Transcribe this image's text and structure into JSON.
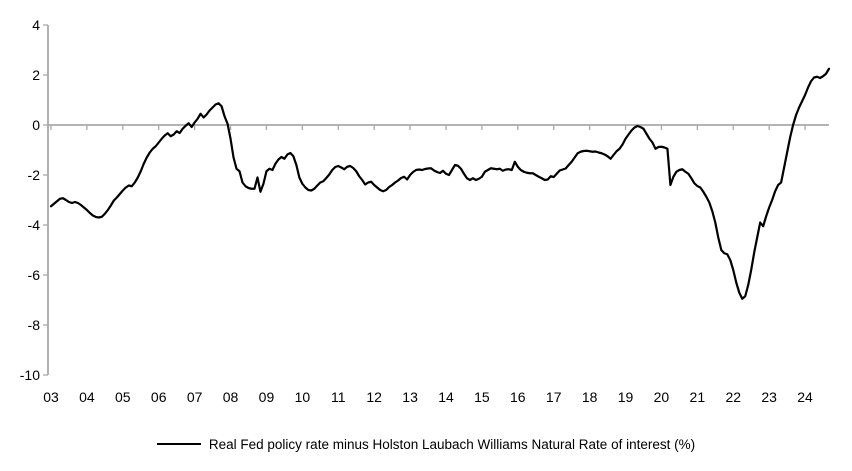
{
  "chart_data": {
    "type": "line",
    "title": "",
    "xlabel": "",
    "ylabel": "",
    "x_tick_labels": [
      "03",
      "04",
      "05",
      "06",
      "07",
      "08",
      "09",
      "10",
      "11",
      "12",
      "13",
      "14",
      "15",
      "16",
      "17",
      "18",
      "19",
      "20",
      "21",
      "22",
      "23",
      "24"
    ],
    "y_ticks": [
      4,
      2,
      0,
      -2,
      -4,
      -6,
      -8,
      -10
    ],
    "ylim": [
      -10,
      4
    ],
    "zero_line": true,
    "grid": false,
    "legend_position": "bottom",
    "line_color": "#000000",
    "axis_color": "#a9a9a9",
    "text_color": "#000000",
    "series": [
      {
        "name": "Real Fed policy rate minus Holston Laubach Williams Natural Rate of interest (%)",
        "start": "2003-01",
        "end": "2024-09",
        "frequency": "monthly",
        "values": [
          -3.25,
          -3.15,
          -3.05,
          -2.95,
          -2.93,
          -3.0,
          -3.08,
          -3.12,
          -3.08,
          -3.12,
          -3.2,
          -3.3,
          -3.4,
          -3.52,
          -3.62,
          -3.68,
          -3.7,
          -3.67,
          -3.55,
          -3.4,
          -3.22,
          -3.02,
          -2.9,
          -2.76,
          -2.62,
          -2.5,
          -2.42,
          -2.45,
          -2.3,
          -2.1,
          -1.85,
          -1.55,
          -1.3,
          -1.1,
          -0.95,
          -0.85,
          -0.7,
          -0.55,
          -0.42,
          -0.33,
          -0.45,
          -0.38,
          -0.25,
          -0.32,
          -0.15,
          -0.03,
          0.07,
          -0.08,
          0.1,
          0.25,
          0.45,
          0.3,
          0.42,
          0.58,
          0.7,
          0.82,
          0.87,
          0.75,
          0.35,
          0.05,
          -0.55,
          -1.3,
          -1.75,
          -1.85,
          -2.3,
          -2.45,
          -2.52,
          -2.55,
          -2.55,
          -2.1,
          -2.67,
          -2.35,
          -1.85,
          -1.75,
          -1.8,
          -1.55,
          -1.38,
          -1.28,
          -1.35,
          -1.18,
          -1.12,
          -1.25,
          -1.6,
          -2.1,
          -2.35,
          -2.5,
          -2.6,
          -2.62,
          -2.55,
          -2.42,
          -2.3,
          -2.25,
          -2.12,
          -1.98,
          -1.8,
          -1.68,
          -1.64,
          -1.7,
          -1.77,
          -1.67,
          -1.64,
          -1.72,
          -1.85,
          -2.05,
          -2.2,
          -2.38,
          -2.3,
          -2.27,
          -2.4,
          -2.5,
          -2.6,
          -2.65,
          -2.6,
          -2.48,
          -2.4,
          -2.3,
          -2.22,
          -2.12,
          -2.07,
          -2.18,
          -2.0,
          -1.88,
          -1.8,
          -1.78,
          -1.8,
          -1.76,
          -1.74,
          -1.73,
          -1.82,
          -1.88,
          -1.92,
          -1.83,
          -1.95,
          -2.0,
          -1.8,
          -1.6,
          -1.63,
          -1.75,
          -1.95,
          -2.13,
          -2.2,
          -2.13,
          -2.2,
          -2.15,
          -2.07,
          -1.87,
          -1.8,
          -1.73,
          -1.75,
          -1.77,
          -1.75,
          -1.83,
          -1.78,
          -1.77,
          -1.8,
          -1.47,
          -1.67,
          -1.8,
          -1.87,
          -1.91,
          -1.93,
          -1.93,
          -2.0,
          -2.07,
          -2.13,
          -2.2,
          -2.18,
          -2.05,
          -2.08,
          -1.95,
          -1.82,
          -1.78,
          -1.74,
          -1.6,
          -1.47,
          -1.3,
          -1.13,
          -1.07,
          -1.04,
          -1.03,
          -1.05,
          -1.07,
          -1.06,
          -1.1,
          -1.13,
          -1.18,
          -1.25,
          -1.35,
          -1.2,
          -1.05,
          -0.95,
          -0.78,
          -0.55,
          -0.38,
          -0.22,
          -0.1,
          -0.04,
          -0.08,
          -0.15,
          -0.35,
          -0.55,
          -0.7,
          -0.95,
          -0.88,
          -0.87,
          -0.9,
          -0.95,
          -2.4,
          -2.07,
          -1.87,
          -1.8,
          -1.77,
          -1.87,
          -1.95,
          -2.13,
          -2.33,
          -2.44,
          -2.5,
          -2.67,
          -2.87,
          -3.1,
          -3.45,
          -3.9,
          -4.5,
          -5.0,
          -5.13,
          -5.17,
          -5.4,
          -5.8,
          -6.3,
          -6.7,
          -6.95,
          -6.85,
          -6.4,
          -5.8,
          -5.1,
          -4.5,
          -3.9,
          -4.05,
          -3.65,
          -3.3,
          -3.0,
          -2.65,
          -2.4,
          -2.3,
          -1.7,
          -1.1,
          -0.5,
          0.0,
          0.4,
          0.7,
          0.95,
          1.2,
          1.5,
          1.75,
          1.9,
          1.93,
          1.88,
          1.95,
          2.05,
          2.25
        ]
      }
    ]
  },
  "legend": {
    "label": "Real Fed policy rate minus Holston Laubach Williams Natural Rate of interest (%)"
  }
}
